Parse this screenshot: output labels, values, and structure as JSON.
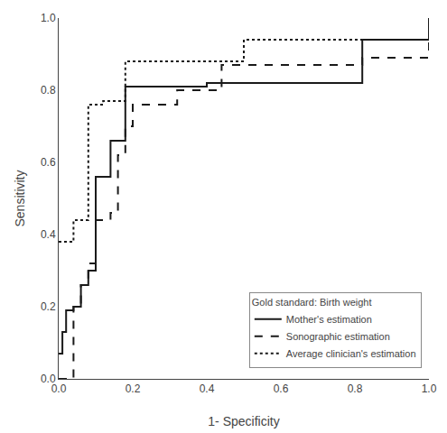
{
  "chart_data": {
    "type": "step",
    "xlabel": "1- Specificity",
    "ylabel": "Sensitivity",
    "xlim": [
      0.0,
      1.0
    ],
    "ylim": [
      0.0,
      1.0
    ],
    "xticks": [
      {
        "value": 0.0,
        "label": "0.0"
      },
      0.2,
      0.4,
      0.6,
      0.8,
      {
        "value": 1.0,
        "label": "1.0"
      }
    ],
    "yticks": [
      {
        "value": 0.0,
        "label": "0.0"
      },
      0.2,
      0.4,
      0.6,
      0.8,
      {
        "value": 1.0,
        "label": "1.0"
      }
    ],
    "grid": false,
    "legend": "lower right",
    "legend_title": "Gold standard: Birth weight",
    "series": [
      {
        "name": "Mother's estimation",
        "color": "#1a1a1a",
        "line_style": "solid",
        "x": [
          0.0,
          0.01,
          0.02,
          0.04,
          0.06,
          0.08,
          0.1,
          0.12,
          0.14,
          0.16,
          0.18,
          0.2,
          0.3,
          0.4,
          0.42,
          0.8,
          0.82,
          1.0
        ],
        "values": [
          0.07,
          0.13,
          0.19,
          0.2,
          0.26,
          0.3,
          0.56,
          0.56,
          0.66,
          0.66,
          0.81,
          0.81,
          0.81,
          0.82,
          0.82,
          0.82,
          0.94,
          1.0
        ]
      },
      {
        "name": "Sonographic estimation",
        "color": "#1a1a1a",
        "line_style": "dashed",
        "x": [
          0.0,
          0.04,
          0.06,
          0.08,
          0.1,
          0.12,
          0.14,
          0.16,
          0.18,
          0.2,
          0.3,
          0.32,
          0.4,
          0.44,
          0.46,
          0.5,
          0.8,
          0.82,
          1.0
        ],
        "values": [
          0.0,
          0.2,
          0.26,
          0.32,
          0.44,
          0.44,
          0.46,
          0.62,
          0.7,
          0.76,
          0.76,
          0.8,
          0.8,
          0.87,
          0.87,
          0.87,
          0.87,
          0.89,
          1.0
        ]
      },
      {
        "name": "Average clinician's estimation",
        "color": "#1a1a1a",
        "line_style": "dotted",
        "x": [
          0.0,
          0.02,
          0.04,
          0.06,
          0.08,
          0.1,
          0.12,
          0.14,
          0.16,
          0.18,
          0.2,
          0.5,
          0.6,
          0.8,
          1.0
        ],
        "values": [
          0.38,
          0.38,
          0.44,
          0.44,
          0.76,
          0.76,
          0.77,
          0.77,
          0.77,
          0.88,
          0.88,
          0.94,
          0.94,
          0.94,
          1.0
        ]
      }
    ]
  }
}
